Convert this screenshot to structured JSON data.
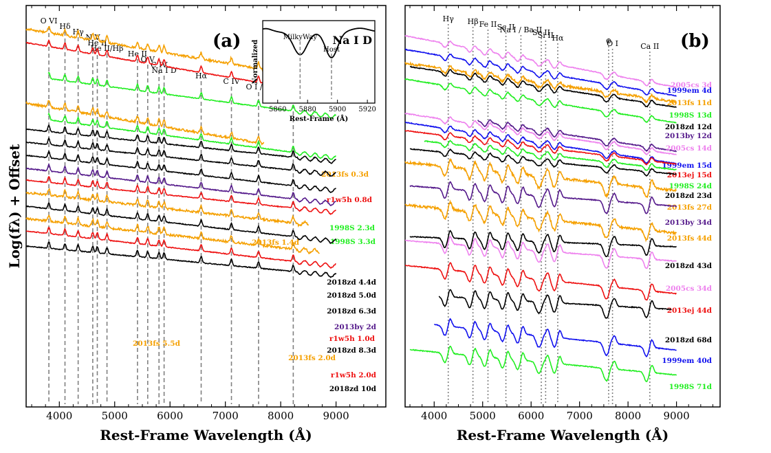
{
  "figure": {
    "ylabel": "Log(fλ) + Offset"
  },
  "colors": {
    "2013fs": "#f5a000",
    "r1w5h": "#ee1111",
    "1998S": "#22ee22",
    "2018zd": "#000000",
    "2013by": "#551a8b",
    "2013ej": "#ee1111",
    "2005cs": "#ee82ee",
    "1999em": "#1111ee",
    "line_marker": "#808080"
  },
  "chart_data": [
    {
      "panel": "(a)",
      "type": "line",
      "xlabel": "Rest-Frame Wavelength (Å)",
      "xlim": [
        3400,
        9900
      ],
      "xticks": [
        4000,
        5000,
        6000,
        7000,
        8000,
        9000
      ],
      "grid": false,
      "lines": [
        {
          "label": "O VI",
          "x": 3811
        },
        {
          "label": "Hδ",
          "x": 4102
        },
        {
          "label": "Hγ",
          "x": 4340
        },
        {
          "label": "N V",
          "x": 4604
        },
        {
          "label": "He II",
          "x": 4686
        },
        {
          "label": "He II/Hβ",
          "x": 4861
        },
        {
          "label": "He II",
          "x": 5412
        },
        {
          "label": "O V",
          "x": 5597
        },
        {
          "label": "C IV",
          "x": 5801
        },
        {
          "label": "Na I D",
          "x": 5893
        },
        {
          "label": "Hα",
          "x": 6563
        },
        {
          "label": "C IV",
          "x": 7110
        },
        {
          "label": "O I / ⊕",
          "x": 7600
        },
        {
          "label": "O I",
          "x": 8227
        }
      ],
      "series": [
        {
          "label": "2013fs 0.3d",
          "color_key": "2013fs",
          "x_range": [
            3400,
            8900
          ]
        },
        {
          "label": "r1w5h 0.8d",
          "color_key": "r1w5h",
          "x_range": [
            3400,
            9000
          ]
        },
        {
          "label": "1998S 2.3d",
          "color_key": "1998S",
          "x_range": [
            3800,
            9000
          ]
        },
        {
          "label": "2013fs 1.4d",
          "color_key": "2013fs",
          "x_range": [
            3400,
            7700
          ]
        },
        {
          "label": "1998S 3.3d",
          "color_key": "1998S",
          "x_range": [
            3800,
            9000
          ]
        },
        {
          "label": "2018zd 4.4d",
          "color_key": "2018zd",
          "x_range": [
            3400,
            9000
          ]
        },
        {
          "label": "2018zd 5.0d",
          "color_key": "2018zd",
          "x_range": [
            3400,
            9000
          ]
        },
        {
          "label": "2018zd 6.3d",
          "color_key": "2018zd",
          "x_range": [
            3400,
            9000
          ]
        },
        {
          "label": "2013by 2d",
          "color_key": "2013by",
          "x_range": [
            3400,
            9000
          ]
        },
        {
          "label": "r1w5h 1.0d",
          "color_key": "r1w5h",
          "x_range": [
            3400,
            9000
          ]
        },
        {
          "label": "2013fs 5.5d",
          "color_key": "2013fs",
          "x_range": [
            3400,
            8500
          ]
        },
        {
          "label": "2018zd 8.3d",
          "color_key": "2018zd",
          "x_range": [
            3400,
            9000
          ]
        },
        {
          "label": "2013fs 2.0d",
          "color_key": "2013fs",
          "x_range": [
            3400,
            8700
          ]
        },
        {
          "label": "r1w5h 2.0d",
          "color_key": "r1w5h",
          "x_range": [
            3400,
            9000
          ]
        },
        {
          "label": "2018zd 10d",
          "color_key": "2018zd",
          "x_range": [
            3400,
            9000
          ]
        }
      ],
      "inset": {
        "title": "Na I D",
        "xlabel": "Rest-Frame (Å)",
        "ylabel": "Normalized",
        "xlim": [
          5850,
          5925
        ],
        "xticks": [
          5860,
          5880,
          5900,
          5920
        ],
        "markers": [
          {
            "label": "MilkyWay",
            "x": 5875
          },
          {
            "label": "Host",
            "x": 5896
          }
        ]
      }
    },
    {
      "panel": "(b)",
      "type": "line",
      "xlabel": "Rest-Frame Wavelength (Å)",
      "xlim": [
        3400,
        9900
      ],
      "xticks": [
        4000,
        5000,
        6000,
        7000,
        8000,
        9000
      ],
      "grid": false,
      "lines": [
        {
          "label": "Hγ",
          "x": 4290
        },
        {
          "label": "Hβ",
          "x": 4800
        },
        {
          "label": "Fe II",
          "x": 5110
        },
        {
          "label": "Sc II",
          "x": 5480
        },
        {
          "label": "Na I / Ba II",
          "x": 5790
        },
        {
          "label": "Sc II",
          "x": 6210
        },
        {
          "label": "Si II",
          "x": 6300
        },
        {
          "label": "Hα",
          "x": 6550
        },
        {
          "label": "⊕",
          "x": 7600
        },
        {
          "label": "O I",
          "x": 7680
        },
        {
          "label": "Ca II",
          "x": 8450
        }
      ],
      "series": [
        {
          "label": "2005cs 3d",
          "color_key": "2005cs",
          "x_range": [
            3400,
            9000
          ]
        },
        {
          "label": "1999em 4d",
          "color_key": "1999em",
          "x_range": [
            3400,
            9000
          ]
        },
        {
          "label": "2013fs 11d",
          "color_key": "2013fs",
          "x_range": [
            3400,
            9000
          ]
        },
        {
          "label": "1998S 13d",
          "color_key": "1998S",
          "x_range": [
            3400,
            9000
          ]
        },
        {
          "label": "2018zd 12d",
          "color_key": "2018zd",
          "x_range": [
            3500,
            9000
          ]
        },
        {
          "label": "2013by 12d",
          "color_key": "2013by",
          "x_range": [
            4900,
            9000
          ]
        },
        {
          "label": "2005cs 14d",
          "color_key": "2005cs",
          "x_range": [
            3400,
            9000
          ]
        },
        {
          "label": "1999em 15d",
          "color_key": "1999em",
          "x_range": [
            3400,
            9000
          ]
        },
        {
          "label": "2013ej 15d",
          "color_key": "2013ej",
          "x_range": [
            3400,
            9000
          ]
        },
        {
          "label": "1998S 24d",
          "color_key": "1998S",
          "x_range": [
            3800,
            9000
          ]
        },
        {
          "label": "2018zd 23d",
          "color_key": "2018zd",
          "x_range": [
            3500,
            9000
          ]
        },
        {
          "label": "2013fs 27d",
          "color_key": "2013fs",
          "x_range": [
            3400,
            9000
          ]
        },
        {
          "label": "2013by 34d",
          "color_key": "2013by",
          "x_range": [
            3500,
            9000
          ]
        },
        {
          "label": "2013fs 44d",
          "color_key": "2013fs",
          "x_range": [
            3400,
            9000
          ]
        },
        {
          "label": "2018zd 43d",
          "color_key": "2018zd",
          "x_range": [
            3500,
            9000
          ]
        },
        {
          "label": "2005cs 34d",
          "color_key": "2005cs",
          "x_range": [
            3400,
            9000
          ]
        },
        {
          "label": "2013ej 44d",
          "color_key": "2013ej",
          "x_range": [
            3400,
            9000
          ]
        },
        {
          "label": "2018zd 68d",
          "color_key": "2018zd",
          "x_range": [
            4100,
            8900
          ]
        },
        {
          "label": "1999em 40d",
          "color_key": "1999em",
          "x_range": [
            4000,
            9000
          ]
        },
        {
          "label": "1998S 71d",
          "color_key": "1998S",
          "x_range": [
            3500,
            9000
          ]
        }
      ]
    }
  ]
}
